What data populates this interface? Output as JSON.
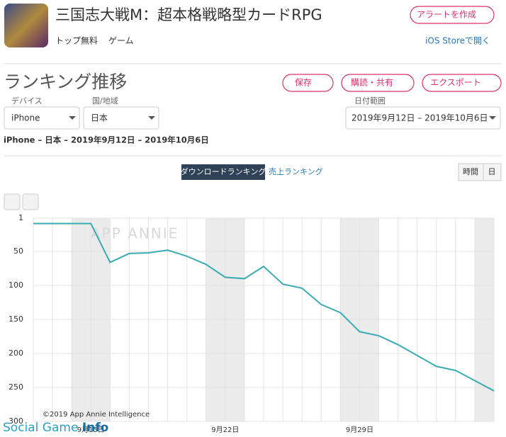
{
  "app": {
    "title": "三国志大戦M：超本格戦略型カードRPG",
    "tags": [
      "トップ無料",
      "ゲーム"
    ],
    "alert": "アラートを作成",
    "store_link": "iOS Storeで開く"
  },
  "section": {
    "title": "ランキング推移",
    "buttons": [
      "保存",
      "購読・共有",
      "エクスポート"
    ]
  },
  "filters": {
    "device_label": "デバイス",
    "device": "iPhone",
    "region_label": "国/地域",
    "region": "日本",
    "date_label": "日付範囲",
    "date": "2019年9月12日 – 2019年10月6日"
  },
  "summary": "iPhone – 日本 – 2019年9月12日 – 2019年10月6日",
  "tabs": [
    "ダウンロードランキング",
    "売上ランキング"
  ],
  "granularity": [
    "時間",
    "日"
  ],
  "watermark": "APP ANNIE",
  "copyright": "©2019 App Annie Intelligence",
  "logo": {
    "text": "Social Game ",
    "bold": "Info"
  },
  "chart_data": {
    "type": "line",
    "categories": [
      null,
      null,
      null,
      "9月15日",
      null,
      null,
      null,
      null,
      null,
      null,
      "9月22日",
      null,
      null,
      null,
      null,
      null,
      null,
      "9月29日",
      null,
      null,
      null,
      null,
      null,
      null,
      null
    ],
    "series": [
      {
        "color": "#3aabb3",
        "values": [
          9,
          9,
          9,
          9,
          66,
          53,
          52,
          48,
          57,
          69,
          88,
          90,
          72,
          98,
          104,
          128,
          140,
          168,
          174,
          187,
          203,
          219,
          225,
          240,
          255
        ]
      }
    ],
    "ylim": [
      1,
      300
    ],
    "yticks": [
      1,
      50,
      100,
      150,
      200,
      250,
      300
    ],
    "inverted": true,
    "grid": true
  }
}
